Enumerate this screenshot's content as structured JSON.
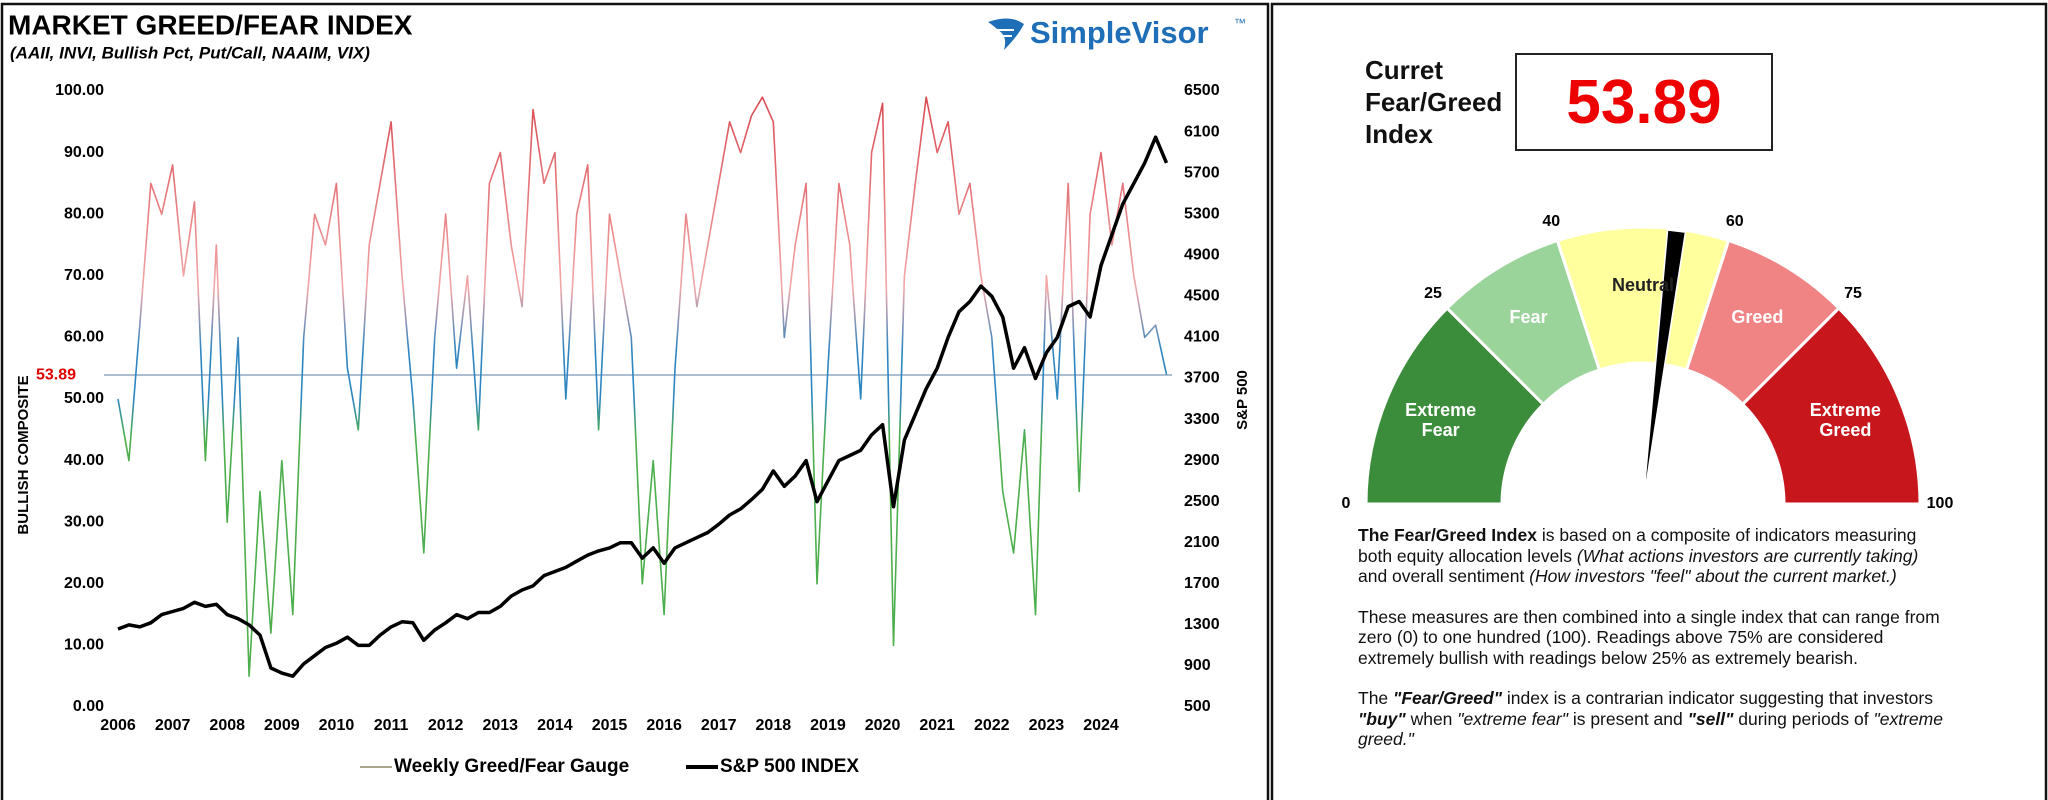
{
  "chart_data": [
    {
      "type": "line",
      "title": "MARKET GREED/FEAR INDEX",
      "subtitle": "(AAII, INVI, Bullish Pct, Put/Call, NAAIM, VIX)",
      "logo": "SimpleVisor",
      "logo_mark": "™",
      "y_label": "BULLISH COMPOSITE",
      "y2_label": "S&P 500",
      "x": [
        2006,
        2006.2,
        2006.4,
        2006.6,
        2006.8,
        2007,
        2007.2,
        2007.4,
        2007.6,
        2007.8,
        2008,
        2008.2,
        2008.4,
        2008.6,
        2008.8,
        2009,
        2009.2,
        2009.4,
        2009.6,
        2009.8,
        2010,
        2010.2,
        2010.4,
        2010.6,
        2010.8,
        2011,
        2011.2,
        2011.4,
        2011.6,
        2011.8,
        2012,
        2012.2,
        2012.4,
        2012.6,
        2012.8,
        2013,
        2013.2,
        2013.4,
        2013.6,
        2013.8,
        2014,
        2014.2,
        2014.4,
        2014.6,
        2014.8,
        2015,
        2015.2,
        2015.4,
        2015.6,
        2015.8,
        2016,
        2016.2,
        2016.4,
        2016.6,
        2016.8,
        2017,
        2017.2,
        2017.4,
        2017.6,
        2017.8,
        2018,
        2018.2,
        2018.4,
        2018.6,
        2018.8,
        2019,
        2019.2,
        2019.4,
        2019.6,
        2019.8,
        2020,
        2020.2,
        2020.4,
        2020.6,
        2020.8,
        2021,
        2021.2,
        2021.4,
        2021.6,
        2021.8,
        2022,
        2022.2,
        2022.4,
        2022.6,
        2022.8,
        2023,
        2023.2,
        2023.4,
        2023.6,
        2023.8,
        2024,
        2024.2,
        2024.4,
        2024.6,
        2024.8,
        2025,
        2025.2
      ],
      "xlim": [
        2006,
        2025.3
      ],
      "xticks": [
        2006,
        2007,
        2008,
        2009,
        2010,
        2011,
        2012,
        2013,
        2014,
        2015,
        2016,
        2017,
        2018,
        2019,
        2020,
        2021,
        2022,
        2023,
        2024
      ],
      "ylim": [
        0,
        100
      ],
      "yticks": [
        {
          "value": 0,
          "label": "0.00"
        },
        {
          "value": 10,
          "label": "10.00"
        },
        {
          "value": 20,
          "label": "20.00"
        },
        {
          "value": 30,
          "label": "30.00"
        },
        {
          "value": 40,
          "label": "40.00"
        },
        {
          "value": 50,
          "label": "50.00"
        },
        {
          "value": 60,
          "label": "60.00"
        },
        {
          "value": 70,
          "label": "70.00"
        },
        {
          "value": 80,
          "label": "80.00"
        },
        {
          "value": 90,
          "label": "90.00"
        },
        {
          "value": 100,
          "label": "100.00"
        }
      ],
      "y2lim": [
        500,
        6500
      ],
      "y2ticks": [
        500,
        900,
        1300,
        1700,
        2100,
        2500,
        2900,
        3300,
        3700,
        4100,
        4500,
        4900,
        5300,
        5700,
        6100,
        6500
      ],
      "reference_line": 53.89,
      "reference_color": "#8fa9c4",
      "reference_label_color": "#e00000",
      "legend": "bottom",
      "series": [
        {
          "name": "Weekly Greed/Fear Gauge",
          "color": "#a8a58a",
          "color_stops": [
            [
              0,
              "#4cae4c"
            ],
            [
              44,
              "#4cae4c"
            ],
            [
              50,
              "#2e86c1"
            ],
            [
              58,
              "#2e86c1"
            ],
            [
              68,
              "#f2a7a7"
            ],
            [
              100,
              "#d9474f"
            ]
          ],
          "values": [
            50,
            40,
            62,
            85,
            80,
            88,
            70,
            82,
            40,
            75,
            30,
            60,
            5,
            35,
            12,
            40,
            15,
            60,
            80,
            75,
            85,
            55,
            45,
            75,
            85,
            95,
            70,
            50,
            25,
            60,
            80,
            55,
            70,
            45,
            85,
            90,
            75,
            65,
            97,
            85,
            90,
            50,
            80,
            88,
            45,
            80,
            70,
            60,
            20,
            40,
            15,
            55,
            80,
            65,
            75,
            85,
            95,
            90,
            96,
            99,
            95,
            60,
            75,
            85,
            20,
            55,
            85,
            75,
            50,
            90,
            98,
            10,
            70,
            85,
            99,
            90,
            95,
            80,
            85,
            70,
            60,
            35,
            25,
            45,
            15,
            70,
            50,
            85,
            35,
            80,
            90,
            75,
            85,
            70,
            60,
            62,
            54
          ]
        },
        {
          "name": "S&P 500 INDEX",
          "color": "#000000",
          "axis": "y2",
          "values": [
            1260,
            1300,
            1280,
            1320,
            1400,
            1430,
            1460,
            1520,
            1480,
            1500,
            1400,
            1360,
            1300,
            1200,
            880,
            830,
            800,
            920,
            1000,
            1080,
            1120,
            1180,
            1100,
            1100,
            1200,
            1280,
            1330,
            1320,
            1150,
            1250,
            1320,
            1400,
            1360,
            1420,
            1420,
            1480,
            1580,
            1640,
            1680,
            1780,
            1820,
            1860,
            1920,
            1980,
            2020,
            2050,
            2100,
            2100,
            1950,
            2050,
            1900,
            2050,
            2100,
            2150,
            2200,
            2280,
            2370,
            2430,
            2520,
            2620,
            2800,
            2650,
            2750,
            2900,
            2500,
            2700,
            2900,
            2950,
            3000,
            3150,
            3250,
            2450,
            3100,
            3350,
            3600,
            3800,
            4100,
            4350,
            4450,
            4600,
            4500,
            4300,
            3800,
            4000,
            3700,
            3950,
            4100,
            4400,
            4450,
            4300,
            4800,
            5100,
            5400,
            5600,
            5800,
            6050,
            5800
          ]
        }
      ]
    },
    {
      "type": "gauge",
      "value": 53.89,
      "range": [
        0,
        100
      ],
      "ticks": [
        0,
        25,
        40,
        60,
        75,
        100
      ],
      "bands": [
        {
          "name": "Extreme Fear",
          "from": 0,
          "to": 25,
          "color": "#3b8c3b",
          "text_color": "#ffffff"
        },
        {
          "name": "Fear",
          "from": 25,
          "to": 40,
          "color": "#9ad49a",
          "text_color": "#ffffff"
        },
        {
          "name": "Neutral",
          "from": 40,
          "to": 60,
          "color": "#ffff9e",
          "text_color": "#222222"
        },
        {
          "name": "Greed",
          "from": 60,
          "to": 75,
          "color": "#f08484",
          "text_color": "#ffffff"
        },
        {
          "name": "Extreme Greed",
          "from": 75,
          "to": 100,
          "color": "#c8161d",
          "text_color": "#ffffff"
        }
      ],
      "needle_color": "#000000",
      "value_color": "#ee0000"
    }
  ],
  "panel": {
    "label": "Curret Fear/Greed Index",
    "description": [
      [
        {
          "text": "The Fear/Greed Index",
          "style": "bold"
        },
        {
          "text": " is based on a composite of indicators measuring both equity allocation levels ",
          "style": "normal"
        },
        {
          "text": "(What actions investors are currently taking)",
          "style": "italic"
        },
        {
          "text": " and overall sentiment ",
          "style": "normal"
        },
        {
          "text": "(How investors \"feel\" about the current market.)",
          "style": "italic"
        }
      ],
      [
        {
          "text": "These measures are then combined into a single index that can range from zero (0) to one hundred (100). Readings above 75% are considered extremely bullish with readings below 25% as extremely bearish.",
          "style": "normal"
        }
      ],
      [
        {
          "text": "The ",
          "style": "normal"
        },
        {
          "text": "\"Fear/Greed\"",
          "style": "bold-italic"
        },
        {
          "text": " index is a contrarian indicator suggesting that investors ",
          "style": "normal"
        },
        {
          "text": "\"buy\"",
          "style": "bold-italic"
        },
        {
          "text": " when ",
          "style": "normal"
        },
        {
          "text": "\"extreme fear\"",
          "style": "italic"
        },
        {
          "text": " is present and ",
          "style": "normal"
        },
        {
          "text": "\"sell\"",
          "style": "bold-italic"
        },
        {
          "text": " during periods of ",
          "style": "normal"
        },
        {
          "text": "\"extreme greed.\"",
          "style": "italic"
        }
      ]
    ]
  }
}
